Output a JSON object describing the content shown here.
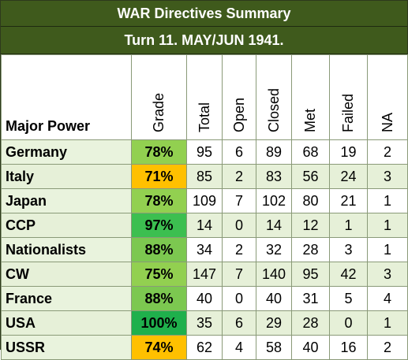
{
  "title": "WAR Directives Summary",
  "subtitle": "Turn 11.  MAY/JUN 1941.",
  "columns": {
    "major_power": "Major Power",
    "grade": "Grade",
    "total": "Total",
    "open": "Open",
    "closed": "Closed",
    "met": "Met",
    "failed": "Failed",
    "na": "NA"
  },
  "grade_colors": {
    "high": "#00b050",
    "good": "#92d050",
    "warn": "#ffc000"
  },
  "rows": [
    {
      "name": "Germany",
      "grade": "78%",
      "total": "95",
      "open": "6",
      "closed": "89",
      "met": "68",
      "failed": "19",
      "na": "2",
      "grade_color": "#92d050"
    },
    {
      "name": "Italy",
      "grade": "71%",
      "total": "85",
      "open": "2",
      "closed": "83",
      "met": "56",
      "failed": "24",
      "na": "3",
      "grade_color": "#ffc000"
    },
    {
      "name": "Japan",
      "grade": "78%",
      "total": "109",
      "open": "7",
      "closed": "102",
      "met": "80",
      "failed": "21",
      "na": "1",
      "grade_color": "#92d050"
    },
    {
      "name": "CCP",
      "grade": "97%",
      "total": "14",
      "open": "0",
      "closed": "14",
      "met": "12",
      "failed": "1",
      "na": "1",
      "grade_color": "#3cbf50"
    },
    {
      "name": "Nationalists",
      "grade": "88%",
      "total": "34",
      "open": "2",
      "closed": "32",
      "met": "28",
      "failed": "3",
      "na": "1",
      "grade_color": "#7cc850"
    },
    {
      "name": "CW",
      "grade": "75%",
      "total": "147",
      "open": "7",
      "closed": "140",
      "met": "95",
      "failed": "42",
      "na": "3",
      "grade_color": "#92d050"
    },
    {
      "name": "France",
      "grade": "88%",
      "total": "40",
      "open": "0",
      "closed": "40",
      "met": "31",
      "failed": "5",
      "na": "4",
      "grade_color": "#7cc850"
    },
    {
      "name": "USA",
      "grade": "100%",
      "total": "35",
      "open": "6",
      "closed": "29",
      "met": "28",
      "failed": "0",
      "na": "1",
      "grade_color": "#1fb04c"
    },
    {
      "name": "USSR",
      "grade": "74%",
      "total": "62",
      "open": "4",
      "closed": "58",
      "met": "40",
      "failed": "16",
      "na": "2",
      "grade_color": "#ffc000"
    }
  ]
}
